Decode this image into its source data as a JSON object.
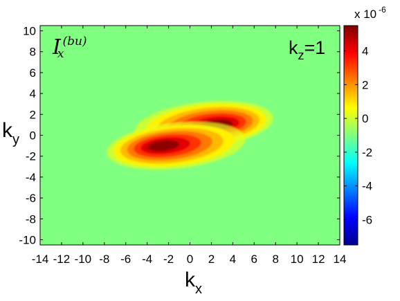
{
  "chart_data": {
    "type": "heatmap",
    "title": "",
    "xlabel": {
      "base": "k",
      "sub": "x"
    },
    "ylabel": {
      "base": "k",
      "sub": "y"
    },
    "xlim": [
      -14,
      14
    ],
    "ylim": [
      -10.5,
      10.5
    ],
    "x_ticks": [
      -14,
      -12,
      -10,
      -8,
      -6,
      -4,
      -2,
      0,
      2,
      4,
      6,
      8,
      10,
      12,
      14
    ],
    "y_ticks": [
      -10,
      -8,
      -6,
      -4,
      -2,
      0,
      2,
      4,
      6,
      8,
      10
    ],
    "colormap": "jet",
    "colorbar": {
      "range": [
        -7.5e-06,
        5.5e-06
      ],
      "ticks": [
        4,
        2,
        0,
        -2,
        -4,
        -6
      ],
      "multiplier_prefix": "x 10",
      "multiplier_exponent": "-6"
    },
    "annotations": {
      "quantity": {
        "symbol": "I",
        "sub": "x",
        "sup": "(bu)"
      },
      "panel": {
        "base": "k",
        "sub": "z",
        "suffix": "=1"
      }
    },
    "features": [
      {
        "kind": "peak",
        "x": 2.5,
        "y": 1.0,
        "value": 5.3e-06
      },
      {
        "kind": "peak",
        "x": -2.5,
        "y": -1.0,
        "value": 5.3e-06
      }
    ],
    "background_value": 3e-07,
    "grid": false,
    "legend": "none"
  }
}
